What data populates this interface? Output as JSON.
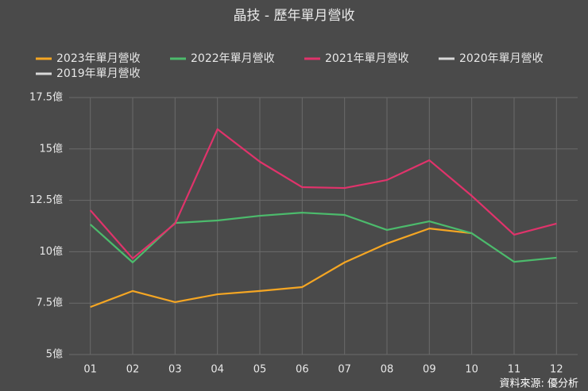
{
  "chart_data": {
    "type": "line",
    "title": "晶技 - 歷年單月營收",
    "source": "資料來源: 優分析",
    "categories": [
      "01",
      "02",
      "03",
      "04",
      "05",
      "06",
      "07",
      "08",
      "09",
      "10",
      "11",
      "12"
    ],
    "series": [
      {
        "name": "2023年單月營收",
        "color": "#f5a623",
        "values": [
          7.31,
          8.09,
          7.55,
          7.93,
          8.09,
          8.28,
          9.48,
          10.4,
          11.13,
          10.9,
          null,
          null
        ]
      },
      {
        "name": "2022年單月營收",
        "color": "#4cbb6c",
        "values": [
          11.33,
          9.48,
          11.4,
          11.52,
          11.75,
          11.9,
          11.79,
          11.06,
          11.48,
          10.9,
          9.51,
          9.71
        ]
      },
      {
        "name": "2021年單月營收",
        "color": "#e0336b",
        "values": [
          12.02,
          9.67,
          11.37,
          15.96,
          14.38,
          13.14,
          13.1,
          13.49,
          14.45,
          12.72,
          10.83,
          11.37
        ]
      },
      {
        "name": "2020年單月營收",
        "color": "#d9d9d9",
        "values": [
          null,
          null,
          null,
          null,
          null,
          null,
          null,
          null,
          null,
          null,
          null,
          null
        ]
      },
      {
        "name": "2019年單月營收",
        "color": "#d9d9d9",
        "values": [
          null,
          null,
          null,
          null,
          null,
          null,
          null,
          null,
          null,
          null,
          null,
          null
        ]
      }
    ],
    "ylim": [
      5,
      17.5
    ],
    "yticks": [
      {
        "value": 5,
        "label": "5億"
      },
      {
        "value": 7.5,
        "label": "7.5億"
      },
      {
        "value": 10,
        "label": "10億"
      },
      {
        "value": 12.5,
        "label": "12.5億"
      },
      {
        "value": 15,
        "label": "15億"
      },
      {
        "value": 17.5,
        "label": "17.5億"
      }
    ],
    "grid": true
  }
}
